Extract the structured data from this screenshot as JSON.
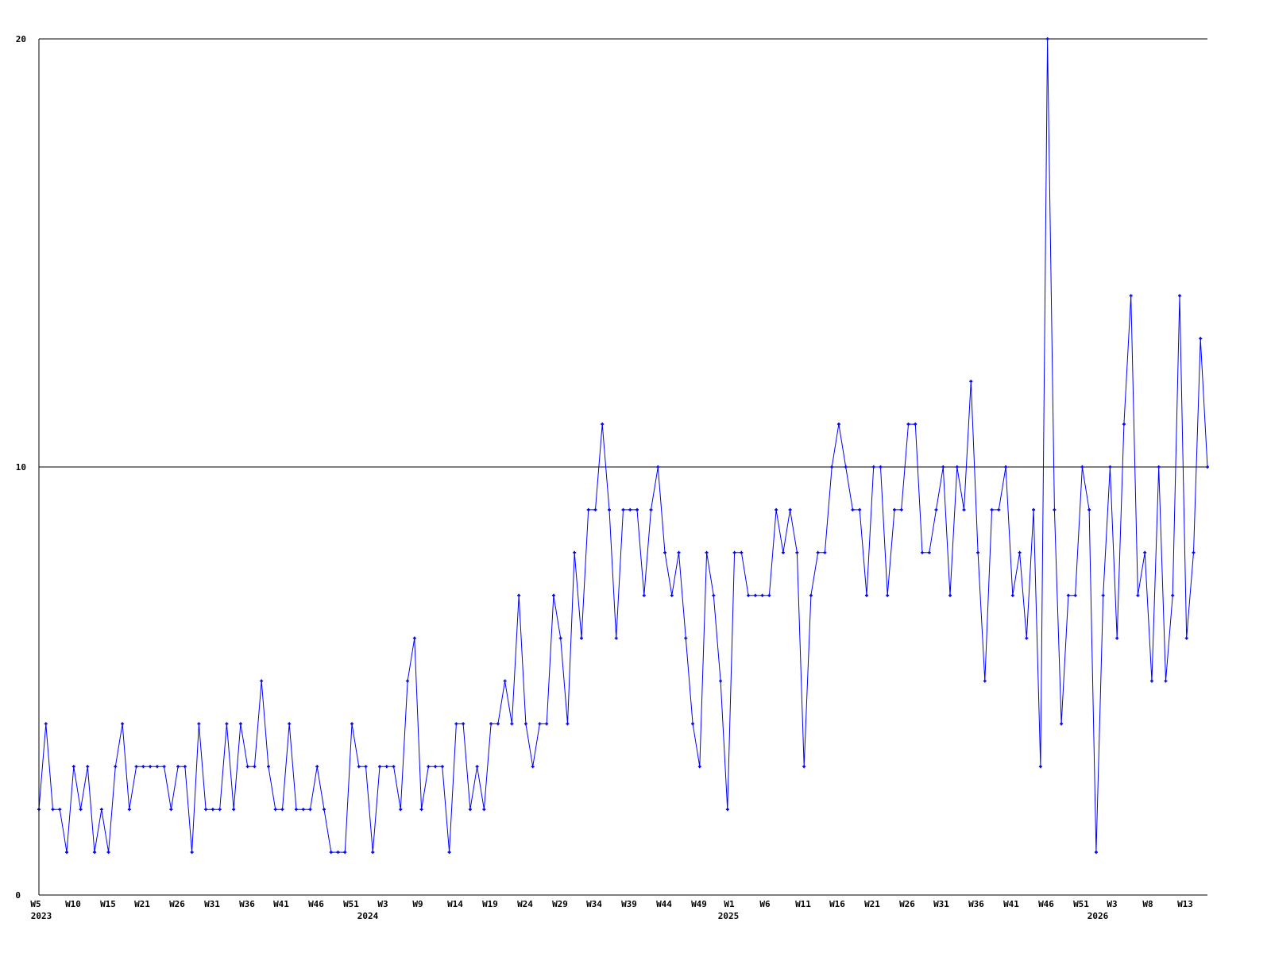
{
  "chart_data": {
    "type": "line",
    "title": "",
    "xlabel": "",
    "ylabel": "",
    "ylim": [
      0,
      20
    ],
    "y_ticks": [
      "0",
      "10",
      "20"
    ],
    "grid": "horizontal lines at 10 and 20",
    "line_color": "#0000ff",
    "marker": "small cross",
    "x_tick_labels": [
      "W5",
      "W10",
      "W15",
      "W21",
      "W26",
      "W31",
      "W36",
      "W41",
      "W46",
      "W51",
      "W3",
      "W9",
      "W14",
      "W19",
      "W24",
      "W29",
      "W34",
      "W39",
      "W44",
      "W49",
      "W1",
      "W6",
      "W11",
      "W16",
      "W21",
      "W26",
      "W31",
      "W36",
      "W41",
      "W46",
      "W51",
      "W3",
      "W8",
      "W13"
    ],
    "year_labels": [
      "2023",
      "2024",
      "2025",
      "2026"
    ],
    "x": [
      "2023-W05",
      "2023-W06",
      "2023-W07",
      "2023-W08",
      "2023-W09",
      "2023-W10",
      "2023-W11",
      "2023-W12",
      "2023-W13",
      "2023-W14",
      "2023-W15",
      "2023-W16",
      "2023-W17",
      "2023-W18",
      "2023-W19",
      "2023-W20",
      "2023-W21",
      "2023-W22",
      "2023-W23",
      "2023-W24",
      "2023-W25",
      "2023-W26",
      "2023-W27",
      "2023-W28",
      "2023-W29",
      "2023-W30",
      "2023-W31",
      "2023-W32",
      "2023-W33",
      "2023-W34",
      "2023-W35",
      "2023-W36",
      "2023-W37",
      "2023-W38",
      "2023-W39",
      "2023-W40",
      "2023-W41",
      "2023-W42",
      "2023-W43",
      "2023-W44",
      "2023-W45",
      "2023-W46",
      "2023-W47",
      "2023-W48",
      "2023-W49",
      "2023-W50",
      "2023-W51",
      "2023-W52",
      "2024-W01",
      "2024-W02",
      "2024-W03",
      "2024-W04",
      "2024-W05",
      "2024-W06",
      "2024-W07",
      "2024-W08",
      "2024-W09",
      "2024-W10",
      "2024-W11",
      "2024-W12",
      "2024-W13",
      "2024-W14",
      "2024-W15",
      "2024-W16",
      "2024-W17",
      "2024-W18",
      "2024-W19",
      "2024-W20",
      "2024-W21",
      "2024-W22",
      "2024-W23",
      "2024-W24",
      "2024-W25",
      "2024-W26",
      "2024-W27",
      "2024-W28",
      "2024-W29",
      "2024-W30",
      "2024-W31",
      "2024-W32",
      "2024-W33",
      "2024-W34",
      "2024-W35",
      "2024-W36",
      "2024-W37",
      "2024-W38",
      "2024-W39",
      "2024-W40",
      "2024-W41",
      "2024-W42",
      "2024-W43",
      "2024-W44",
      "2024-W45",
      "2024-W46",
      "2024-W47",
      "2024-W48",
      "2024-W49",
      "2024-W50",
      "2024-W51",
      "2024-W52",
      "2025-W01",
      "2025-W02",
      "2025-W03",
      "2025-W04",
      "2025-W05",
      "2025-W06",
      "2025-W07",
      "2025-W08",
      "2025-W09",
      "2025-W10",
      "2025-W11",
      "2025-W12",
      "2025-W13",
      "2025-W14",
      "2025-W15",
      "2025-W16",
      "2025-W17",
      "2025-W18",
      "2025-W19",
      "2025-W20",
      "2025-W21",
      "2025-W22",
      "2025-W23",
      "2025-W24",
      "2025-W25",
      "2025-W26",
      "2025-W27",
      "2025-W28",
      "2025-W29",
      "2025-W30",
      "2025-W31",
      "2025-W32",
      "2025-W33",
      "2025-W34",
      "2025-W35",
      "2025-W36",
      "2025-W37",
      "2025-W38",
      "2025-W39",
      "2025-W40",
      "2025-W41",
      "2025-W42",
      "2025-W43",
      "2025-W44",
      "2025-W45",
      "2025-W46",
      "2025-W47",
      "2025-W48",
      "2025-W49",
      "2025-W50",
      "2025-W51",
      "2025-W52",
      "2026-W01",
      "2026-W02",
      "2026-W03",
      "2026-W04",
      "2026-W05",
      "2026-W06",
      "2026-W07",
      "2026-W08",
      "2026-W09",
      "2026-W10",
      "2026-W11",
      "2026-W12",
      "2026-W13",
      "2026-W14",
      "2026-W15",
      "2026-W16",
      "2026-W17"
    ],
    "values": [
      2,
      4,
      2,
      2,
      1,
      3,
      2,
      3,
      1,
      2,
      1,
      3,
      4,
      2,
      3,
      3,
      3,
      3,
      3,
      2,
      3,
      3,
      1,
      4,
      2,
      2,
      2,
      4,
      2,
      4,
      3,
      3,
      5,
      3,
      2,
      2,
      4,
      2,
      2,
      2,
      3,
      2,
      1,
      1,
      1,
      4,
      3,
      3,
      1,
      3,
      3,
      3,
      2,
      5,
      6,
      2,
      3,
      3,
      3,
      1,
      4,
      4,
      2,
      3,
      2,
      4,
      4,
      5,
      4,
      7,
      4,
      3,
      4,
      4,
      7,
      6,
      4,
      8,
      6,
      9,
      9,
      11,
      9,
      6,
      9,
      9,
      9,
      7,
      9,
      10,
      8,
      7,
      8,
      6,
      4,
      3,
      8,
      7,
      5,
      2,
      8,
      8,
      7,
      7,
      7,
      7,
      9,
      8,
      9,
      8,
      3,
      7,
      8,
      8,
      10,
      11,
      10,
      9,
      9,
      7,
      10,
      10,
      7,
      9,
      9,
      11,
      11,
      8,
      8,
      9,
      10,
      7,
      10,
      9,
      12,
      8,
      5,
      9,
      9,
      10,
      7,
      8,
      6,
      9,
      3,
      20,
      9,
      4,
      7,
      7,
      10,
      9,
      1,
      7,
      10,
      6,
      11,
      14,
      7,
      8,
      5,
      10,
      5,
      7,
      14,
      6,
      8,
      13,
      10
    ]
  }
}
